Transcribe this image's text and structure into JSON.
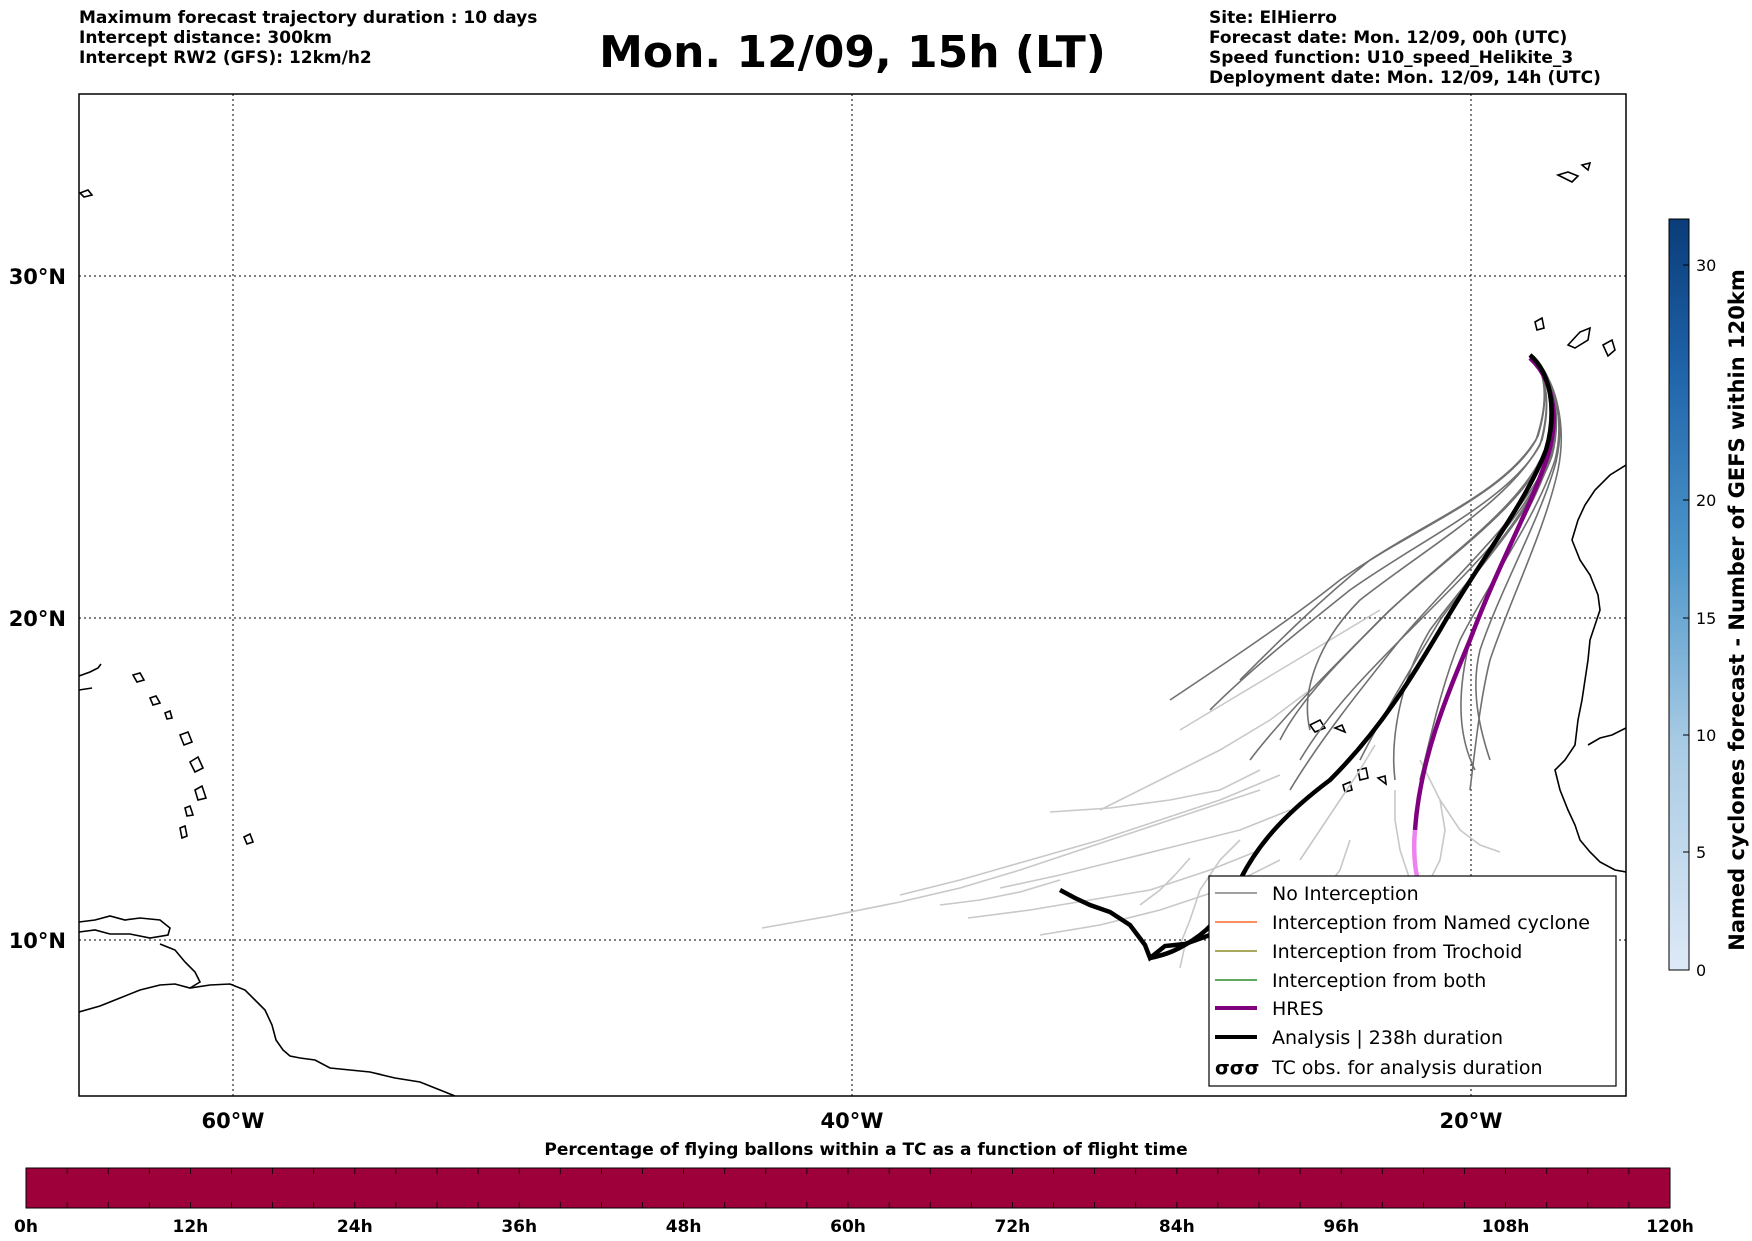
{
  "header": {
    "left": [
      "Maximum forecast trajectory duration : 10 days",
      "Intercept distance: 300km",
      "Intercept RW2 (GFS):  12km/h2"
    ],
    "title": "Mon. 12/09, 15h (LT)",
    "right": [
      "Site: ElHierro",
      "Forecast date: Mon. 12/09, 00h (UTC)",
      "Speed function: U10_speed_Helikite_3",
      "Deployment date: Mon. 12/09, 14h (UTC)"
    ]
  },
  "map": {
    "lon_labels": [
      "60°W",
      "40°W",
      "20°W"
    ],
    "lat_labels": [
      "30°N",
      "20°N",
      "10°N"
    ]
  },
  "legend": {
    "items": [
      {
        "label": "No Interception",
        "color": "#808080"
      },
      {
        "label": "Interception from Named cyclone",
        "color": "#ff6a2a"
      },
      {
        "label": "Interception from Trochoid",
        "color": "#8b8b2a"
      },
      {
        "label": "Interception from both",
        "color": "#2a8b2a"
      },
      {
        "label": "HRES",
        "color": "#800080"
      },
      {
        "label": "Analysis | 238h duration",
        "color": "#000000"
      },
      {
        "label": "TC obs. for analysis duration",
        "symbol": "σσσ"
      }
    ]
  },
  "colorbar": {
    "label": "Named cyclones forecast - Number of GEFS within 120km",
    "ticks": [
      "0",
      "5",
      "10",
      "15",
      "20",
      "30"
    ],
    "tick_values": [
      0,
      5,
      10,
      15,
      20,
      30
    ],
    "max": 32
  },
  "bottom_bar": {
    "title": "Percentage of flying ballons within a TC as a function of flight time",
    "ticks": [
      "0h",
      "12h",
      "24h",
      "36h",
      "48h",
      "60h",
      "72h",
      "84h",
      "96h",
      "108h",
      "120h"
    ],
    "color": "#9e003a"
  }
}
